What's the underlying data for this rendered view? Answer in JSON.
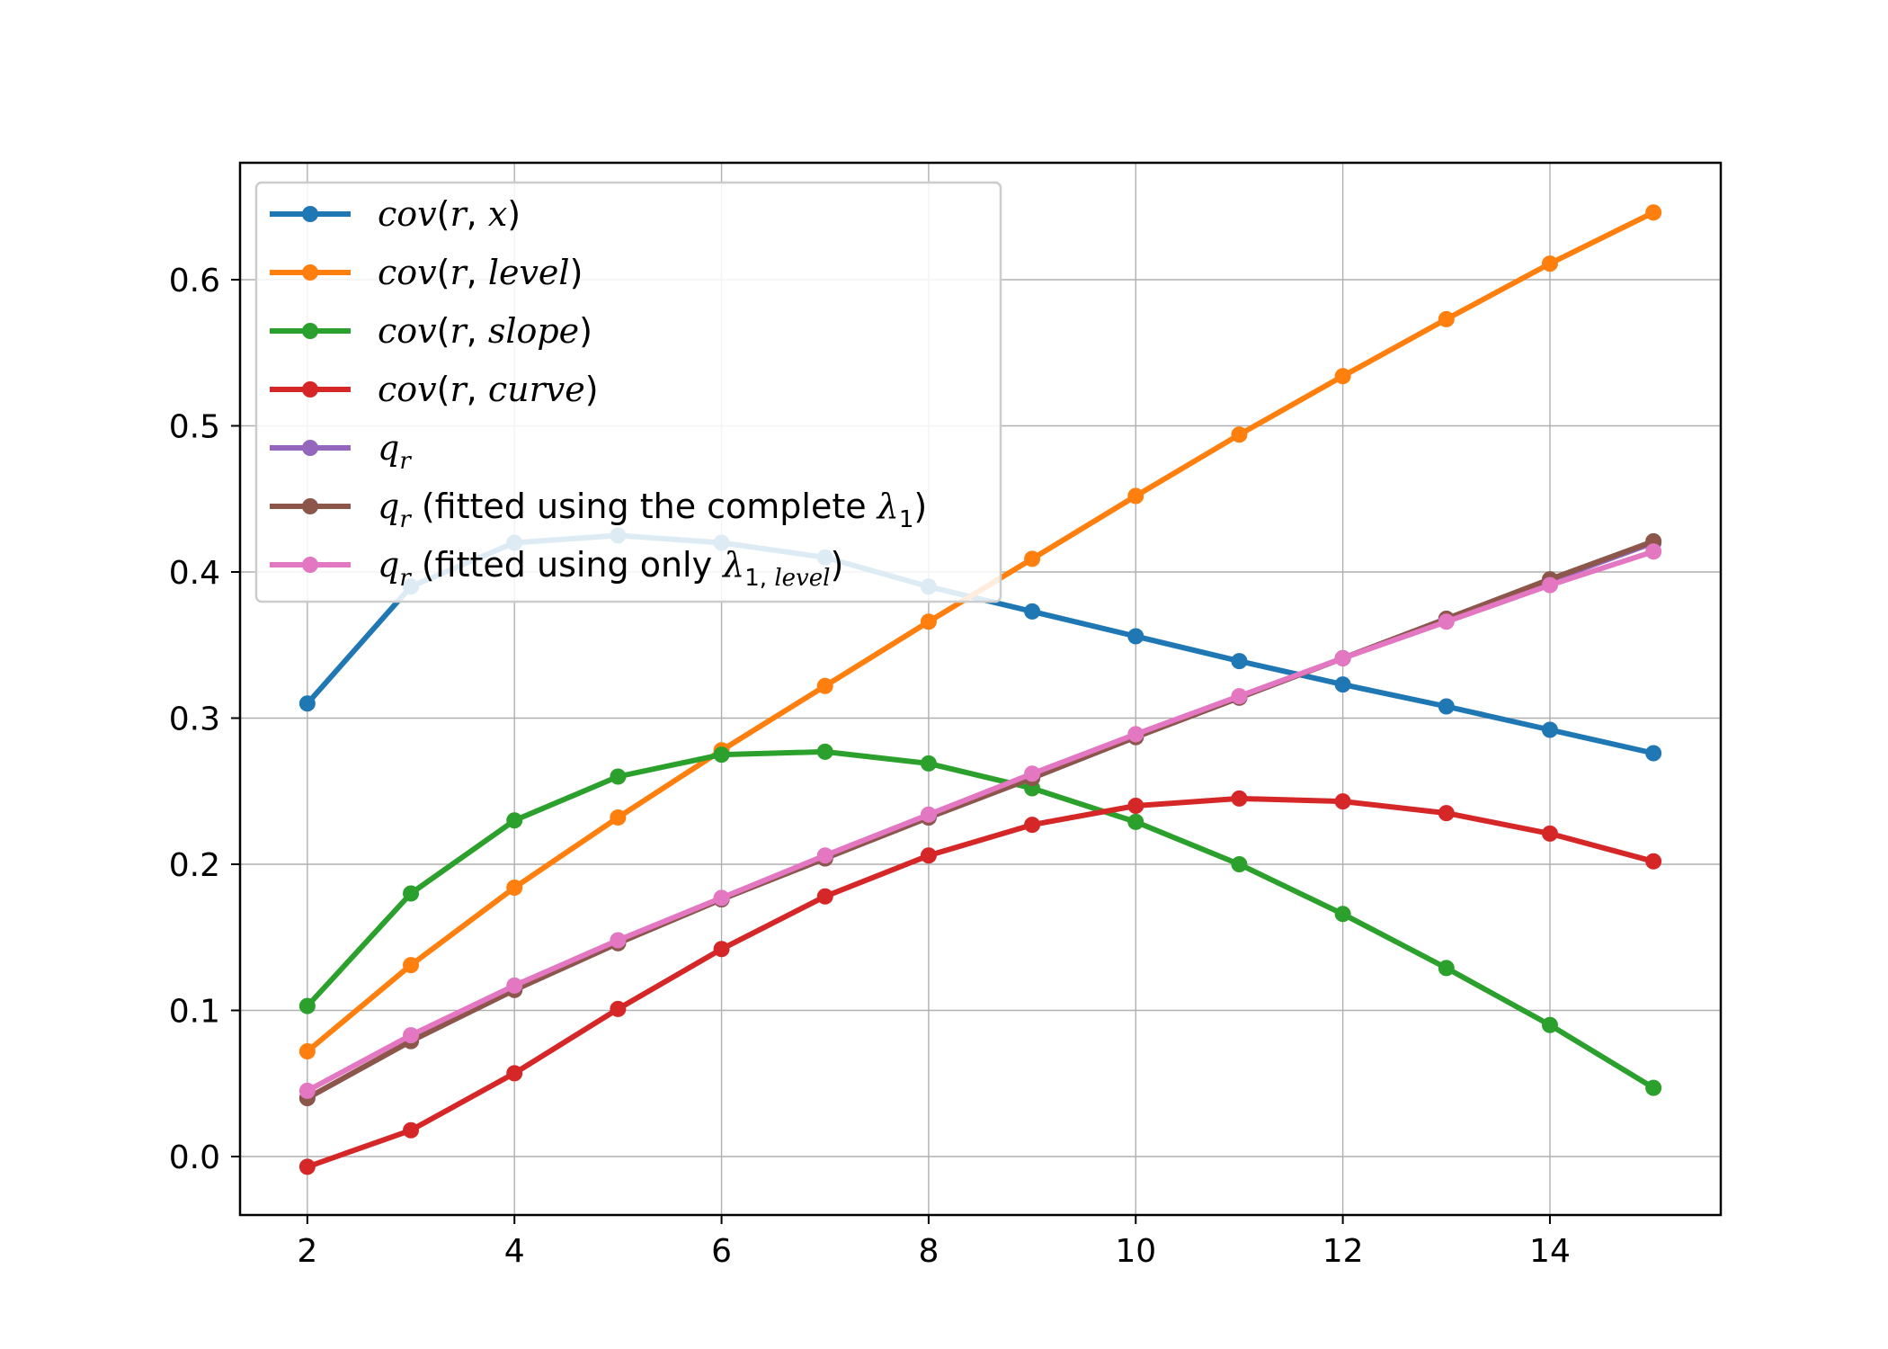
{
  "chart_data": {
    "type": "line",
    "title": "",
    "xlabel": "",
    "ylabel": "",
    "xlim": [
      1.35,
      15.65
    ],
    "ylim": [
      -0.04,
      0.68
    ],
    "xticks": [
      2,
      4,
      6,
      8,
      10,
      12,
      14
    ],
    "yticks": [
      0.0,
      0.1,
      0.2,
      0.3,
      0.4,
      0.5,
      0.6
    ],
    "xtick_labels": [
      "2",
      "4",
      "6",
      "8",
      "10",
      "12",
      "14"
    ],
    "ytick_labels": [
      "0.0",
      "0.1",
      "0.2",
      "0.3",
      "0.4",
      "0.5",
      "0.6"
    ],
    "grid": true,
    "legend_position": "upper-left",
    "x": [
      2,
      3,
      4,
      5,
      6,
      7,
      8,
      9,
      10,
      11,
      12,
      13,
      14,
      15
    ],
    "series": [
      {
        "name": "cov(r, x)",
        "legend": [
          {
            "t": "cov",
            "s": "it"
          },
          {
            "t": "(",
            "s": "rm"
          },
          {
            "t": "r",
            "s": "it"
          },
          {
            "t": ", ",
            "s": "rm"
          },
          {
            "t": "x",
            "s": "it"
          },
          {
            "t": ")",
            "s": "rm"
          }
        ],
        "color": "#1f77b4",
        "values": [
          0.31,
          0.39,
          0.42,
          0.425,
          0.42,
          0.41,
          0.39,
          0.373,
          0.356,
          0.339,
          0.323,
          0.308,
          0.292,
          0.276
        ]
      },
      {
        "name": "cov(r, level)",
        "legend": [
          {
            "t": "cov",
            "s": "it"
          },
          {
            "t": "(",
            "s": "rm"
          },
          {
            "t": "r",
            "s": "it"
          },
          {
            "t": ", ",
            "s": "rm"
          },
          {
            "t": "level",
            "s": "it"
          },
          {
            "t": ")",
            "s": "rm"
          }
        ],
        "color": "#ff7f0e",
        "values": [
          0.072,
          0.131,
          0.184,
          0.232,
          0.278,
          0.322,
          0.366,
          0.409,
          0.452,
          0.494,
          0.534,
          0.573,
          0.611,
          0.646
        ]
      },
      {
        "name": "cov(r, slope)",
        "legend": [
          {
            "t": "cov",
            "s": "it"
          },
          {
            "t": "(",
            "s": "rm"
          },
          {
            "t": "r",
            "s": "it"
          },
          {
            "t": ", ",
            "s": "rm"
          },
          {
            "t": "slope",
            "s": "it"
          },
          {
            "t": ")",
            "s": "rm"
          }
        ],
        "color": "#2ca02c",
        "values": [
          0.103,
          0.18,
          0.23,
          0.26,
          0.275,
          0.277,
          0.269,
          0.252,
          0.229,
          0.2,
          0.166,
          0.129,
          0.09,
          0.047
        ]
      },
      {
        "name": "cov(r, curve)",
        "legend": [
          {
            "t": "cov",
            "s": "it"
          },
          {
            "t": "(",
            "s": "rm"
          },
          {
            "t": "r",
            "s": "it"
          },
          {
            "t": ", ",
            "s": "rm"
          },
          {
            "t": "curve",
            "s": "it"
          },
          {
            "t": ")",
            "s": "rm"
          }
        ],
        "color": "#d62728",
        "values": [
          -0.007,
          0.018,
          0.057,
          0.101,
          0.142,
          0.178,
          0.206,
          0.227,
          0.24,
          0.245,
          0.243,
          0.235,
          0.221,
          0.202
        ]
      },
      {
        "name": "q_r",
        "legend": [
          {
            "t": "q",
            "s": "it"
          },
          {
            "t": "r",
            "s": "sub"
          }
        ],
        "color": "#9467bd",
        "values": [
          0.04,
          0.079,
          0.114,
          0.146,
          0.176,
          0.204,
          0.232,
          0.259,
          0.287,
          0.314,
          0.341,
          0.368,
          0.394,
          0.42
        ]
      },
      {
        "name": "q_r (fitted using the complete λ1)",
        "legend": [
          {
            "t": "q",
            "s": "it"
          },
          {
            "t": "r",
            "s": "sub"
          },
          {
            "t": " (fitted using the complete ",
            "s": "rm"
          },
          {
            "t": "λ",
            "s": "it"
          },
          {
            "t": "1",
            "s": "subrm"
          },
          {
            "t": ")",
            "s": "rm"
          }
        ],
        "color": "#8c564b",
        "values": [
          0.04,
          0.079,
          0.114,
          0.146,
          0.176,
          0.204,
          0.232,
          0.259,
          0.287,
          0.314,
          0.341,
          0.368,
          0.395,
          0.421
        ]
      },
      {
        "name": "q_r (fitted using only λ1, level)",
        "legend": [
          {
            "t": "q",
            "s": "it"
          },
          {
            "t": "r",
            "s": "sub"
          },
          {
            "t": " (fitted using only ",
            "s": "rm"
          },
          {
            "t": "λ",
            "s": "it"
          },
          {
            "t": "1, ",
            "s": "subrm"
          },
          {
            "t": "level",
            "s": "sub"
          },
          {
            "t": ")",
            "s": "rm"
          }
        ],
        "color": "#e377c2",
        "values": [
          0.045,
          0.083,
          0.117,
          0.148,
          0.177,
          0.206,
          0.234,
          0.262,
          0.289,
          0.315,
          0.341,
          0.366,
          0.391,
          0.414
        ]
      }
    ]
  }
}
